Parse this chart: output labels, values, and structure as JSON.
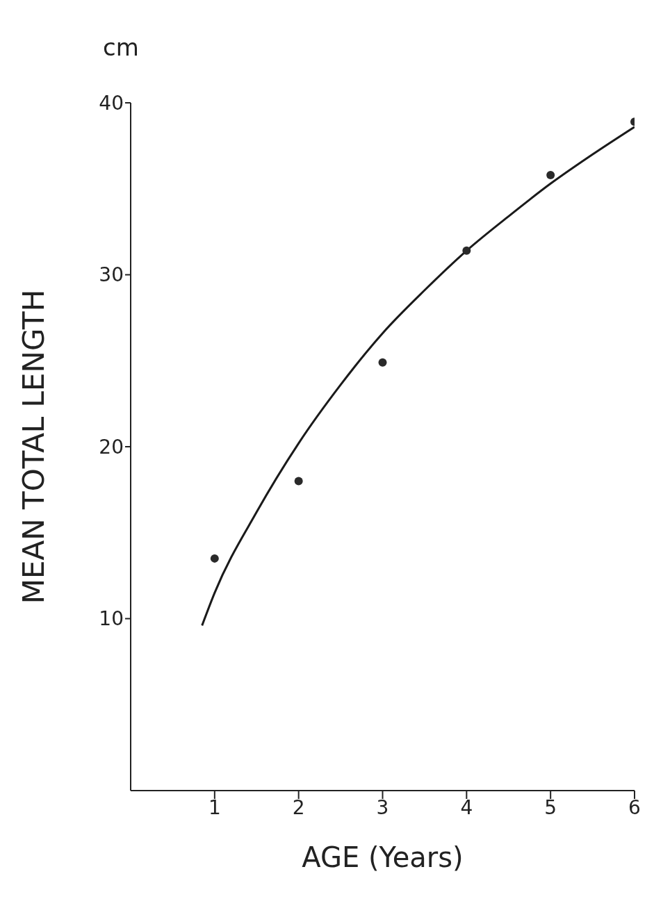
{
  "chart_data": {
    "type": "scatter",
    "xlabel": "AGE (Years)",
    "ylabel": "MEAN TOTAL LENGTH",
    "annotations": [
      "cm"
    ],
    "xlim": [
      0,
      6
    ],
    "xticks": [
      1,
      2,
      3,
      4,
      5,
      6
    ],
    "ylim": [
      0,
      40
    ],
    "yticks": [
      10,
      20,
      30,
      40
    ],
    "grid": false,
    "legend": false,
    "series": [
      {
        "type": "scatter",
        "color": "#2a2a2a",
        "marker": "circle",
        "x": [
          1,
          2,
          3,
          4,
          5,
          6
        ],
        "values": [
          13.5,
          18,
          24.9,
          31.4,
          35.8,
          38.9
        ]
      },
      {
        "type": "line",
        "color": "#1a1a1a",
        "marker": "none",
        "line_style": "solid",
        "x": [
          0.85,
          1,
          1.5,
          2,
          2.5,
          3,
          3.5,
          4,
          4.5,
          5,
          5.5,
          6
        ],
        "values": [
          9.6,
          11.5,
          16.2,
          20.2,
          23.6,
          26.6,
          29.1,
          31.4,
          33.4,
          35.3,
          37,
          38.6
        ]
      }
    ]
  }
}
